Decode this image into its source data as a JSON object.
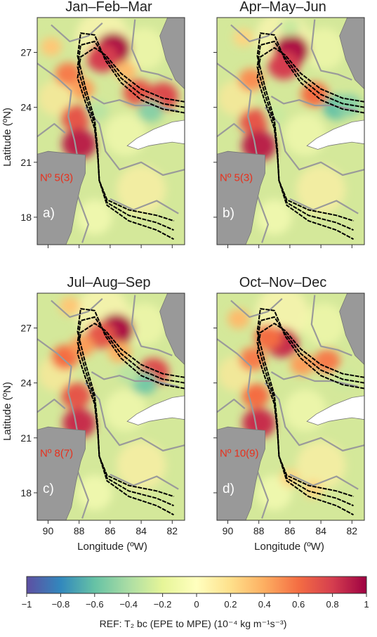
{
  "chart_data": {
    "type": "heatmap",
    "panels": [
      {
        "title": "Jan–Feb–Mar",
        "panel_label": "a)",
        "count_label": "Nº 5(3)"
      },
      {
        "title": "Apr–May–Jun",
        "panel_label": "b)",
        "count_label": "Nº 5(3)"
      },
      {
        "title": "Jul–Aug–Sep",
        "panel_label": "c)",
        "count_label": "Nº 8(7)"
      },
      {
        "title": "Oct–Nov–Dec",
        "panel_label": "d)",
        "count_label": "Nº 10(9)"
      }
    ],
    "xlabel": "Longitude (ºW)",
    "ylabel": "Latitude (ºN)",
    "x_ticks": [
      90,
      88,
      86,
      84,
      82
    ],
    "y_ticks": [
      27,
      24,
      21,
      18
    ],
    "xlim": [
      90.7,
      81.2
    ],
    "ylim": [
      16.5,
      28.9
    ],
    "colorbar": {
      "label": "REF: T₂ bc (EPE to MPE) (10⁻⁴ kg m⁻¹s⁻³)",
      "ticks": [
        "−1",
        "−0.8",
        "−0.6",
        "−0.4",
        "−0.2",
        "0",
        "0.2",
        "0.4",
        "0.6",
        "0.8",
        "1"
      ],
      "range": [
        -1,
        1
      ],
      "colors": [
        "#5e4fa2",
        "#3288bd",
        "#66c2a5",
        "#abdda4",
        "#e6f598",
        "#ffffbf",
        "#fee08b",
        "#fdae61",
        "#f46d43",
        "#d53e4f",
        "#9e0142"
      ]
    },
    "colors": {
      "land": "#999999",
      "ocean_base": "#d4e89a",
      "contour_gray": "#9a9a9a",
      "streamline": "#000000",
      "count_text": "#e8301c"
    },
    "hotspots": [
      [
        {
          "x": 85.8,
          "y": 27.2,
          "v": 0.95
        },
        {
          "x": 86.5,
          "y": 26.7,
          "v": 0.8
        },
        {
          "x": 88.7,
          "y": 25.8,
          "v": 0.55
        },
        {
          "x": 87.8,
          "y": 25.0,
          "v": 0.45
        },
        {
          "x": 88.2,
          "y": 23.4,
          "v": 0.7
        },
        {
          "x": 88.0,
          "y": 22.0,
          "v": 0.9
        },
        {
          "x": 84.2,
          "y": 24.8,
          "v": 0.7
        },
        {
          "x": 82.6,
          "y": 24.6,
          "v": 0.75
        },
        {
          "x": 83.4,
          "y": 23.8,
          "v": -0.5
        },
        {
          "x": 89.8,
          "y": 27.3,
          "v": 0.3
        },
        {
          "x": 85.0,
          "y": 26.0,
          "v": 0.35
        },
        {
          "x": 86.8,
          "y": 23.8,
          "v": -0.35
        }
      ],
      [
        {
          "x": 85.9,
          "y": 27.1,
          "v": 0.95
        },
        {
          "x": 86.4,
          "y": 26.3,
          "v": 0.8
        },
        {
          "x": 88.5,
          "y": 25.5,
          "v": 0.5
        },
        {
          "x": 88.3,
          "y": 23.2,
          "v": 0.7
        },
        {
          "x": 88.0,
          "y": 21.9,
          "v": 0.9
        },
        {
          "x": 84.4,
          "y": 24.7,
          "v": 0.6
        },
        {
          "x": 83.0,
          "y": 24.0,
          "v": -0.6
        },
        {
          "x": 82.2,
          "y": 24.1,
          "v": -0.5
        },
        {
          "x": 86.0,
          "y": 28.4,
          "v": -0.3
        },
        {
          "x": 89.0,
          "y": 27.8,
          "v": 0.25
        },
        {
          "x": 86.9,
          "y": 23.6,
          "v": -0.3
        }
      ],
      [
        {
          "x": 85.6,
          "y": 26.9,
          "v": 0.95
        },
        {
          "x": 86.6,
          "y": 26.6,
          "v": 0.7
        },
        {
          "x": 88.9,
          "y": 25.4,
          "v": 0.6
        },
        {
          "x": 87.8,
          "y": 26.0,
          "v": 0.45
        },
        {
          "x": 88.2,
          "y": 23.3,
          "v": 0.7
        },
        {
          "x": 88.0,
          "y": 21.8,
          "v": 0.85
        },
        {
          "x": 83.2,
          "y": 24.6,
          "v": 0.75
        },
        {
          "x": 83.8,
          "y": 24.0,
          "v": -0.55
        },
        {
          "x": 84.8,
          "y": 24.5,
          "v": -0.35
        },
        {
          "x": 88.6,
          "y": 28.2,
          "v": 0.3
        },
        {
          "x": 85.4,
          "y": 25.7,
          "v": 0.4
        }
      ],
      [
        {
          "x": 86.5,
          "y": 26.2,
          "v": 0.85
        },
        {
          "x": 87.4,
          "y": 26.5,
          "v": 0.6
        },
        {
          "x": 88.4,
          "y": 25.3,
          "v": 0.55
        },
        {
          "x": 88.2,
          "y": 23.3,
          "v": 0.6
        },
        {
          "x": 88.0,
          "y": 21.8,
          "v": 0.85
        },
        {
          "x": 83.6,
          "y": 25.2,
          "v": 0.55
        },
        {
          "x": 85.2,
          "y": 25.0,
          "v": 0.45
        },
        {
          "x": 86.0,
          "y": 18.8,
          "v": 0.25
        },
        {
          "x": 84.5,
          "y": 18.2,
          "v": 0.25
        },
        {
          "x": 82.5,
          "y": 24.2,
          "v": -0.3
        },
        {
          "x": 89.3,
          "y": 27.5,
          "v": 0.35
        }
      ]
    ]
  }
}
